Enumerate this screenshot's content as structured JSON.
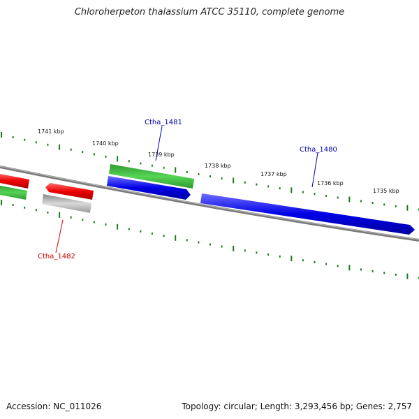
{
  "title": "Chloroherpeton thalassium ATCC 35110, complete genome",
  "accession": "Accession: NC_011026",
  "summary": "Topology: circular; Length: 3,293,456 bp; Genes: 2,757",
  "colors": {
    "backbone": "#777777",
    "tick": "#1a7a1a",
    "forward_cds": "#0000dd",
    "reverse_cds": "#33bb33",
    "red_feature": "#ee1111",
    "gray_feature": "#aaaaaa",
    "label_blue": "#0000aa",
    "label_red": "#cc0000"
  },
  "ticks": [
    "1741 kbp",
    "1740 kbp",
    "1739 kbp",
    "1738 kbp",
    "1737 kbp",
    "1736 kbp",
    "1735 kbp"
  ],
  "genes": [
    {
      "name": "Ctha_1481",
      "color": "label_blue"
    },
    {
      "name": "Ctha_1480",
      "color": "label_blue"
    },
    {
      "name": "Ctha_1482",
      "color": "label_red"
    }
  ]
}
